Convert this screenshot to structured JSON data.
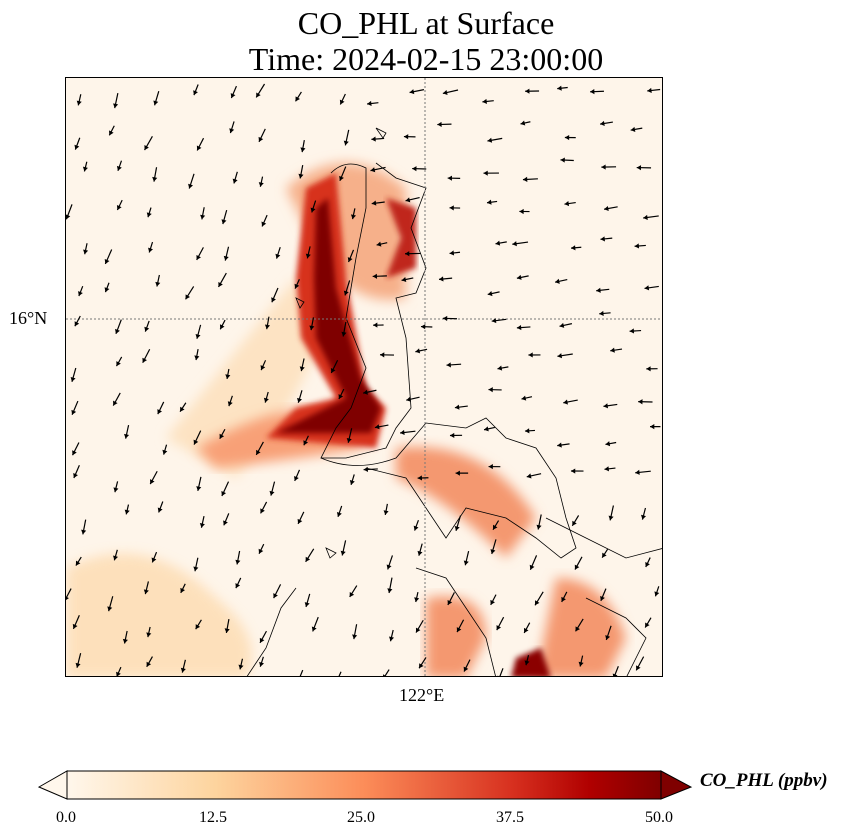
{
  "title": {
    "line1": "CO_PHL at Surface",
    "line2": "Time: 2024-02-15 23:00:00"
  },
  "map": {
    "lat_label": "16°N",
    "lon_label": "122°E",
    "features": [
      "coastlines",
      "wind-vectors",
      "gridlines"
    ]
  },
  "colorbar": {
    "label": "CO_PHL (ppbv)",
    "ticks": [
      "0.0",
      "12.5",
      "25.0",
      "37.5",
      "50.0"
    ],
    "min": 0,
    "max": 50,
    "extend": "both",
    "colormap": [
      "#fff7ec",
      "#fdd49e",
      "#fc8d59",
      "#d7301f",
      "#7f0000"
    ]
  }
}
